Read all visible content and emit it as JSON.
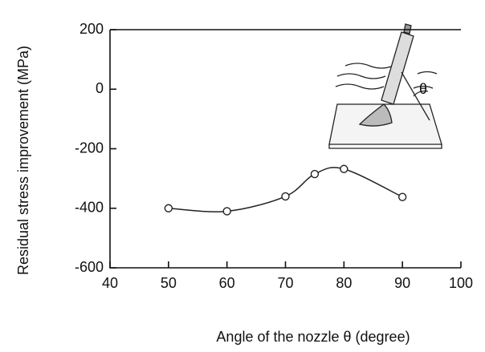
{
  "chart_data": {
    "type": "line",
    "x_label": "Angle of the nozzle  θ  (degree)",
    "y_label": "Residual stress improvement  (MPa)",
    "x": [
      50,
      60,
      70,
      75,
      80,
      90
    ],
    "values": [
      -400,
      -410,
      -360,
      -285,
      -268,
      -362
    ],
    "color": "#222222",
    "xlim": [
      40,
      100
    ],
    "xticks": [
      40,
      50,
      60,
      70,
      80,
      90,
      100
    ],
    "ylim": [
      -600,
      200
    ],
    "yticks": [
      -600,
      -400,
      -200,
      0,
      200
    ]
  }
}
